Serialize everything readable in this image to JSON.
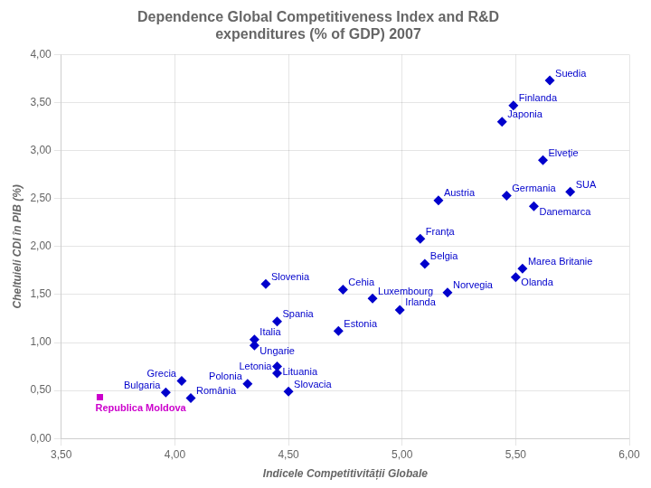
{
  "chart_data": {
    "type": "scatter",
    "title": [
      "Dependence Global Competitiveness Index and R&D",
      "expenditures (% of GDP) 2007"
    ],
    "xlabel": "Indicele Competitivității Globale",
    "ylabel": "Cheltuieli CDI în PIB (%)",
    "xlim": [
      3.5,
      6.0
    ],
    "ylim": [
      0.0,
      4.0
    ],
    "xticks": [
      {
        "value": 3.5,
        "label": "3,50"
      },
      {
        "value": 4.0,
        "label": "4,00"
      },
      {
        "value": 4.5,
        "label": "4,50"
      },
      {
        "value": 5.0,
        "label": "5,00"
      },
      {
        "value": 5.5,
        "label": "5,50"
      },
      {
        "value": 6.0,
        "label": "6,00"
      }
    ],
    "yticks": [
      {
        "value": 0.0,
        "label": "0,00"
      },
      {
        "value": 0.5,
        "label": "0,50"
      },
      {
        "value": 1.0,
        "label": "1,00"
      },
      {
        "value": 1.5,
        "label": "1,50"
      },
      {
        "value": 2.0,
        "label": "2,00"
      },
      {
        "value": 2.5,
        "label": "2,50"
      },
      {
        "value": 3.0,
        "label": "3,00"
      },
      {
        "value": 3.5,
        "label": "3,50"
      },
      {
        "value": 4.0,
        "label": "4,00"
      }
    ],
    "grid": true,
    "series": [
      {
        "color": "#0000cc",
        "marker": "diamond",
        "x": [
          5.65,
          5.49,
          5.44,
          5.62,
          5.74,
          5.46,
          5.16,
          5.58,
          5.08,
          5.1,
          5.53,
          5.5,
          5.2,
          4.74,
          4.87,
          4.99,
          4.4,
          4.45,
          4.72,
          4.35,
          4.35,
          4.45,
          4.45,
          4.5,
          4.32,
          3.96,
          4.03,
          4.07
        ],
        "values": [
          3.73,
          3.47,
          3.3,
          2.9,
          2.57,
          2.53,
          2.48,
          2.42,
          2.08,
          1.82,
          1.77,
          1.68,
          1.52,
          1.55,
          1.46,
          1.34,
          1.61,
          1.22,
          1.12,
          1.03,
          0.97,
          0.75,
          0.68,
          0.49,
          0.57,
          0.48,
          0.6,
          0.42
        ],
        "labels": [
          "Suedia",
          "Finlanda",
          "Japonia",
          "Elveție",
          "SUA",
          "Germania",
          "Austria",
          "Danemarca",
          "Franța",
          "Belgia",
          "Marea Britanie",
          "Olanda",
          "Norvegia",
          "Cehia",
          "Luxembourg",
          "Irlanda",
          "Slovenia",
          "Spania",
          "Estonia",
          "Italia",
          "Ungarie",
          "Lituania",
          "Letonia",
          "Slovacia",
          "Polonia",
          "Bulgaria",
          "Grecia",
          "România"
        ]
      },
      {
        "color": "#cc00cc",
        "marker": "square",
        "x": [
          3.67
        ],
        "values": [
          0.43
        ],
        "labels": [
          "Republica Moldova"
        ]
      }
    ]
  }
}
